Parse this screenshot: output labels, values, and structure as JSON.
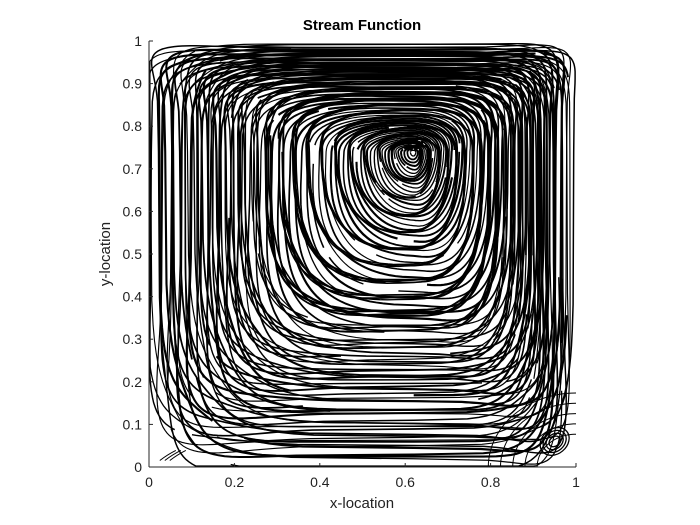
{
  "chart_data": {
    "type": "streamline",
    "title": "Stream Function",
    "xlabel": "x-location",
    "ylabel": "y-location",
    "xlim": [
      0,
      1
    ],
    "ylim": [
      0,
      1
    ],
    "xticks": [
      "0",
      "0.2",
      "0.4",
      "0.6",
      "0.8",
      "1"
    ],
    "yticks": [
      "0",
      "0.1",
      "0.2",
      "0.3",
      "0.4",
      "0.5",
      "0.6",
      "0.7",
      "0.8",
      "0.9",
      "1"
    ],
    "grid": false,
    "line_color": "#000000",
    "primary_vortex_center": [
      0.62,
      0.74
    ],
    "secondary_vortex_center": [
      0.95,
      0.06
    ],
    "corner_vortex_lower_left": [
      0.03,
      0.02
    ]
  }
}
